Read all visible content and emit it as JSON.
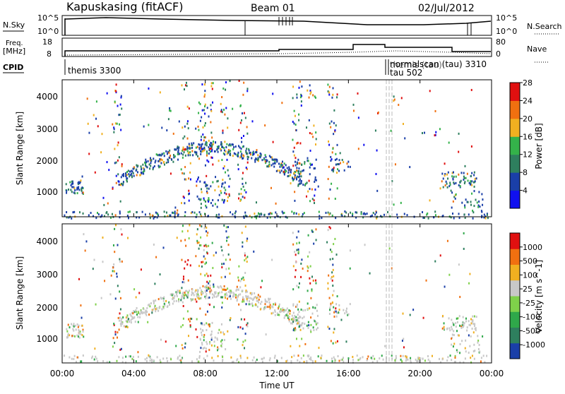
{
  "header": {
    "station": "Kapuskasing (fitACF)",
    "beam": "Beam 01",
    "date": "02/Jul/2012"
  },
  "top_panels": {
    "nsky_label": "N.Sky",
    "nsky_ticks": [
      "10^5",
      "10^0"
    ],
    "nsearch_label": "N.Search",
    "nsearch_ticks": [
      "10^5",
      "10^0"
    ],
    "freq_label": "Freq.",
    "freq_unit": "[MHz]",
    "freq_ticks": [
      "18",
      "8"
    ],
    "nave_label": "Nave",
    "nave_ticks": [
      "80",
      "0"
    ],
    "cpid_label": "CPID",
    "cpid_entries": [
      "themis 3300",
      "normalscan (tau) 3310",
      "themis (tau)",
      "tau 502"
    ]
  },
  "chart_data": [
    {
      "type": "heatmap",
      "name": "power-panel",
      "ylabel": "Slant Range [km]",
      "yticks": [
        "1000",
        "2000",
        "3000",
        "4000"
      ],
      "ylim": [
        180,
        4600
      ],
      "colorbar_label": "Power [dB]",
      "colorbar_ticks": [
        "4",
        "8",
        "12",
        "16",
        "20",
        "24",
        "28"
      ],
      "colors": [
        "#1010f0",
        "#1a3fa8",
        "#2e7f5e",
        "#34b24a",
        "#f0b020",
        "#f07010",
        "#e01010"
      ]
    },
    {
      "type": "heatmap",
      "name": "velocity-panel",
      "ylabel": "Slant Range [km]",
      "yticks": [
        "1000",
        "2000",
        "3000",
        "4000"
      ],
      "ylim": [
        180,
        4600
      ],
      "colorbar_label": "Velocity [m s^-1]",
      "colorbar_ticks": [
        "1000",
        "500",
        "100",
        "25",
        "-25",
        "-100",
        "-500",
        "-1000"
      ],
      "colors": [
        "#1a3fa8",
        "#2e7f5e",
        "#2fa84a",
        "#7fd14a",
        "#c8c8c8",
        "#f0b020",
        "#f07010",
        "#e01010"
      ]
    }
  ],
  "xaxis": {
    "label": "Time UT",
    "ticks": [
      "00:00",
      "04:00",
      "08:00",
      "12:00",
      "16:00",
      "20:00",
      "00:00"
    ]
  }
}
